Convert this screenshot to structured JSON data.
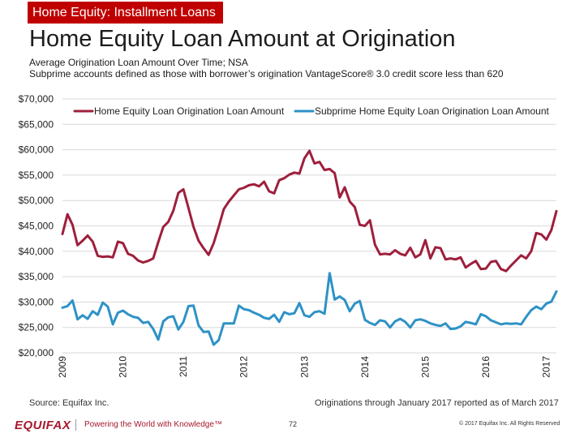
{
  "header": {
    "section_tag": "Home Equity: Installment Loans",
    "title": "Home Equity Loan Amount at Origination",
    "subtitle_line1": "Average Origination Loan Amount Over Time; NSA",
    "subtitle_line2": "Subprime accounts defined as those with borrower’s origination VantageScore® 3.0 credit score less than 620"
  },
  "footnotes": {
    "source": "Source: Equifax Inc.",
    "note": "Originations through January 2017 reported as of March 2017"
  },
  "footer": {
    "logo": "EQUIFAX",
    "tagline": "Powering the World with Knowledge™",
    "page_number": "72",
    "copyright": "© 2017 Equifax Inc. All Rights Reserved"
  },
  "chart_data": {
    "type": "line",
    "x_start": "2009-01",
    "x_frequency": "monthly",
    "x_tick_labels": [
      "2009",
      "2010",
      "2011",
      "2012",
      "2013",
      "2014",
      "2015",
      "2016",
      "2017"
    ],
    "y_tick_labels": [
      "$20,000",
      "$25,000",
      "$30,000",
      "$35,000",
      "$40,000",
      "$45,000",
      "$50,000",
      "$55,000",
      "$60,000",
      "$65,000",
      "$70,000"
    ],
    "ylim": [
      20000,
      70000
    ],
    "grid": true,
    "legend_position": "top",
    "series": [
      {
        "name": "Home Equity Loan Origination Loan Amount",
        "color": "#9e1f3c",
        "values": [
          43400,
          47300,
          45200,
          41200,
          42100,
          43100,
          41900,
          39100,
          38900,
          39000,
          38800,
          41900,
          41600,
          39500,
          39100,
          38200,
          37800,
          38100,
          38600,
          41800,
          44800,
          45800,
          48000,
          51500,
          52200,
          48500,
          44800,
          42100,
          40600,
          39300,
          41600,
          44800,
          48300,
          49800,
          51000,
          52200,
          52500,
          53000,
          53200,
          52800,
          53700,
          51800,
          51400,
          54000,
          54400,
          55100,
          55500,
          55300,
          58300,
          59800,
          57300,
          57600,
          56000,
          56200,
          55400,
          50600,
          52600,
          49800,
          48700,
          45200,
          45000,
          46100,
          41300,
          39400,
          39500,
          39400,
          40200,
          39500,
          39200,
          40700,
          38800,
          39400,
          42200,
          38600,
          40800,
          40600,
          38400,
          38600,
          38400,
          38800,
          36800,
          37500,
          38100,
          36500,
          36600,
          37900,
          38100,
          36500,
          36100,
          37200,
          38200,
          39200,
          38600,
          40000,
          43600,
          43300,
          42300,
          44200,
          47900
        ]
      },
      {
        "name": "Subprime Home Equity Loan Origination Loan Amount",
        "color": "#2e92c6",
        "values": [
          28900,
          29200,
          30300,
          26600,
          27400,
          26700,
          28200,
          27500,
          29900,
          29100,
          25600,
          27900,
          28300,
          27600,
          27100,
          26900,
          25900,
          26100,
          24700,
          22600,
          26200,
          27000,
          27200,
          24600,
          26100,
          29200,
          29300,
          25400,
          24100,
          24200,
          21600,
          22500,
          25800,
          25800,
          25800,
          29300,
          28600,
          28400,
          27900,
          27500,
          26900,
          26700,
          27500,
          26100,
          28000,
          27600,
          27800,
          29800,
          27400,
          27100,
          28000,
          28200,
          27700,
          35700,
          30500,
          31100,
          30400,
          28200,
          29700,
          30200,
          26500,
          25900,
          25500,
          26400,
          26200,
          25000,
          26200,
          26700,
          26100,
          25000,
          26400,
          26600,
          26300,
          25800,
          25500,
          25300,
          25800,
          24700,
          24800,
          25200,
          26100,
          25900,
          25600,
          27600,
          27200,
          26400,
          26000,
          25600,
          25800,
          25700,
          25800,
          25600,
          27100,
          28400,
          29100,
          28600,
          29700,
          30100,
          32100
        ]
      }
    ]
  }
}
